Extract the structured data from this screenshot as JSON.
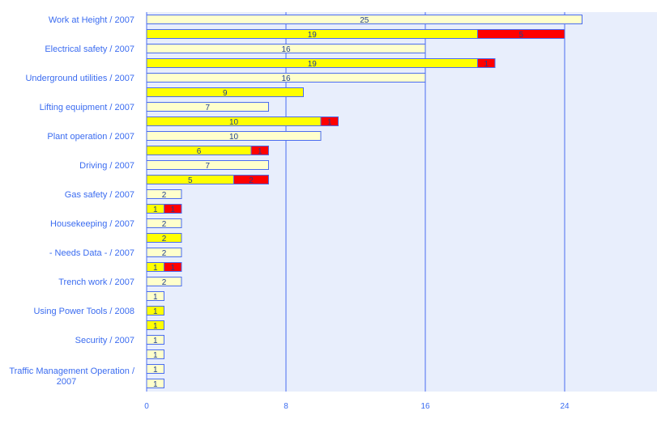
{
  "chart_data": {
    "type": "bar",
    "orientation": "horizontal",
    "stacked": true,
    "xlim": [
      0,
      29.3
    ],
    "xticks": [
      "0",
      "8",
      "16",
      "24"
    ],
    "grid": true,
    "colors": {
      "total": "#ffffcc",
      "yellow": "#ffff00",
      "red": "#ff0000",
      "axis": "#4a6cf0",
      "plot_bg": "#e8eefc",
      "label": "#3b6cf0",
      "value_text": "#1f3f8f"
    },
    "category_labels": [
      {
        "row": 0,
        "text": "Work at Height / 2007"
      },
      {
        "row": 2,
        "text": "Electrical safety / 2007"
      },
      {
        "row": 4,
        "text": "Underground utilities / 2007"
      },
      {
        "row": 6,
        "text": "Lifting equipment / 2007"
      },
      {
        "row": 8,
        "text": "Plant operation / 2007"
      },
      {
        "row": 10,
        "text": "Driving / 2007"
      },
      {
        "row": 12,
        "text": "Gas safety / 2007"
      },
      {
        "row": 14,
        "text": "Housekeeping / 2007"
      },
      {
        "row": 16,
        "text": "- Needs Data - / 2007"
      },
      {
        "row": 18,
        "text": "Trench work / 2007"
      },
      {
        "row": 20,
        "text": "Using Power Tools / 2008"
      },
      {
        "row": 22,
        "text": "Security / 2007"
      },
      {
        "row": 24.5,
        "text": "Traffic Management Operation /",
        "text2": "2007"
      }
    ],
    "rows": [
      [
        {
          "s": "total",
          "v": 25
        }
      ],
      [
        {
          "s": "yellow",
          "v": 19
        },
        {
          "s": "red",
          "v": 5
        }
      ],
      [
        {
          "s": "total",
          "v": 16
        }
      ],
      [
        {
          "s": "yellow",
          "v": 19
        },
        {
          "s": "red",
          "v": 1
        }
      ],
      [
        {
          "s": "total",
          "v": 16
        }
      ],
      [
        {
          "s": "yellow",
          "v": 9
        }
      ],
      [
        {
          "s": "total",
          "v": 7
        }
      ],
      [
        {
          "s": "yellow",
          "v": 10
        },
        {
          "s": "red",
          "v": 1
        }
      ],
      [
        {
          "s": "total",
          "v": 10
        }
      ],
      [
        {
          "s": "yellow",
          "v": 6
        },
        {
          "s": "red",
          "v": 1
        }
      ],
      [
        {
          "s": "total",
          "v": 7
        }
      ],
      [
        {
          "s": "yellow",
          "v": 5
        },
        {
          "s": "red",
          "v": 2
        }
      ],
      [
        {
          "s": "total",
          "v": 2
        }
      ],
      [
        {
          "s": "yellow",
          "v": 1
        },
        {
          "s": "red",
          "v": 1
        }
      ],
      [
        {
          "s": "total",
          "v": 2
        }
      ],
      [
        {
          "s": "yellow",
          "v": 2
        }
      ],
      [
        {
          "s": "total",
          "v": 2
        }
      ],
      [
        {
          "s": "yellow",
          "v": 1
        },
        {
          "s": "red",
          "v": 1
        }
      ],
      [
        {
          "s": "total",
          "v": 2
        }
      ],
      [
        {
          "s": "total",
          "v": 1
        }
      ],
      [
        {
          "s": "yellow",
          "v": 1
        }
      ],
      [
        {
          "s": "yellow",
          "v": 1
        }
      ],
      [
        {
          "s": "total",
          "v": 1
        }
      ],
      [
        {
          "s": "total",
          "v": 1
        }
      ],
      [
        {
          "s": "total",
          "v": 1
        }
      ],
      [
        {
          "s": "total",
          "v": 1
        }
      ]
    ]
  }
}
